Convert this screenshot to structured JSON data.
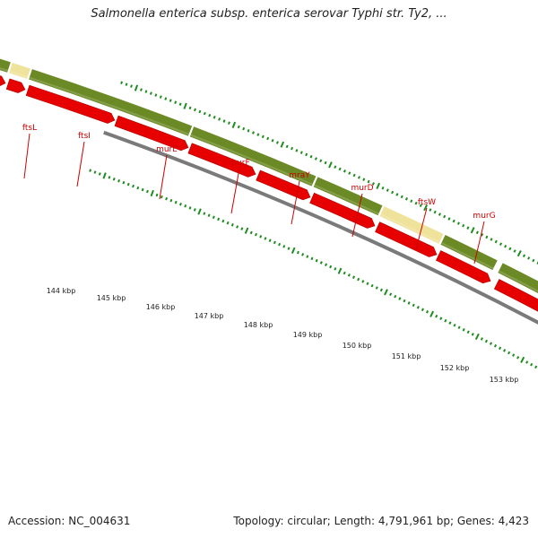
{
  "title": "Salmonella enterica subsp. enterica serovar Typhi str. Ty2, ...",
  "footer": {
    "accession": "Accession: NC_004631",
    "topology": "Topology: circular; Length: 4,791,961 bp; Genes: 4,423"
  },
  "gene_labels": [
    "ftsL",
    "ftsI",
    "murE",
    "murF",
    "mraY",
    "murD",
    "ftsW",
    "murG"
  ],
  "kbp_labels": [
    "144 kbp",
    "145 kbp",
    "146 kbp",
    "147 kbp",
    "148 kbp",
    "149 kbp",
    "150 kbp",
    "151 kbp",
    "152 kbp",
    "153 kbp"
  ],
  "colors": {
    "gene_label": "#cc0000",
    "tick": "#1f8c1f",
    "olive_track": "#6b8a25",
    "highlight_track": "#efe29a",
    "cds_arrow": "#e60000",
    "backbone": "#7a7a7a"
  }
}
